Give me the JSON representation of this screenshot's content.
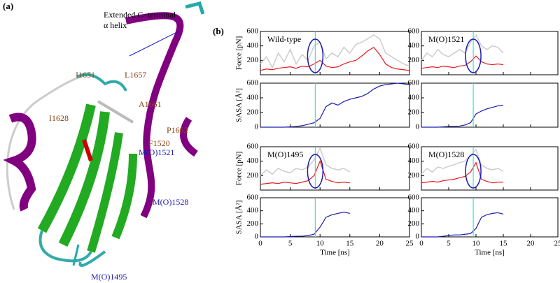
{
  "figure_a": {
    "label": "(a)",
    "annotation": [
      "Extended C−terminal",
      "α helix"
    ],
    "residues": [
      "I1651",
      "L1657",
      "A1661",
      "I1628",
      "P1662",
      "F1520"
    ],
    "oxidized": [
      "M(O)1521",
      "M(O)1528",
      "M(O)1495"
    ]
  },
  "panel_b_label": "(b)",
  "chart_data": [
    {
      "type": "line",
      "title": "Wild-type",
      "ylabel": "Force [pN]",
      "xlim": [
        0,
        25
      ],
      "xticks": [
        0,
        5,
        10,
        15,
        20,
        25
      ],
      "ylim": [
        0,
        600
      ],
      "yticks": [
        200,
        400,
        600
      ],
      "vline": 9.2,
      "vline_color": "#40e0d0",
      "x": [
        0,
        1,
        2,
        3,
        4,
        5,
        6,
        7,
        8,
        9,
        10,
        11,
        12,
        13,
        14,
        15,
        16,
        17,
        18,
        19,
        20,
        21,
        22,
        23,
        24,
        25
      ],
      "series": [
        {
          "color": "#cccccc",
          "values": [
            150,
            250,
            100,
            300,
            180,
            350,
            150,
            280,
            200,
            400,
            450,
            220,
            300,
            250,
            380,
            300,
            420,
            450,
            500,
            550,
            500,
            300,
            250,
            200,
            150,
            120
          ]
        },
        {
          "color": "#e41a1c",
          "values": [
            60,
            80,
            70,
            90,
            100,
            110,
            90,
            120,
            110,
            150,
            200,
            120,
            100,
            110,
            150,
            180,
            200,
            260,
            330,
            380,
            280,
            150,
            100,
            80,
            70,
            60
          ]
        }
      ]
    },
    {
      "type": "line",
      "ylabel": "SASA [Å²]",
      "xlim": [
        0,
        25
      ],
      "xticks": [
        0,
        5,
        10,
        15,
        20,
        25
      ],
      "ylim": [
        0,
        600
      ],
      "yticks": [
        0,
        200,
        400,
        600
      ],
      "vline": 9.2,
      "vline_color": "#40e0d0",
      "x": [
        0,
        1,
        2,
        3,
        4,
        5,
        6,
        7,
        8,
        9,
        10,
        11,
        12,
        13,
        14,
        15,
        16,
        17,
        18,
        19,
        20,
        21,
        22,
        23,
        24,
        25
      ],
      "series": [
        {
          "color": "#1a1ab0",
          "values": [
            0,
            0,
            0,
            0,
            0,
            5,
            10,
            20,
            40,
            60,
            120,
            280,
            330,
            300,
            350,
            380,
            400,
            420,
            460,
            520,
            560,
            580,
            590,
            600,
            590,
            580
          ]
        }
      ]
    },
    {
      "type": "line",
      "title": "M(O)1521",
      "xlim": [
        0,
        25
      ],
      "xticks": [
        0,
        5,
        10,
        15,
        20,
        25
      ],
      "ylim": [
        0,
        600
      ],
      "yticks": [
        200,
        400,
        600
      ],
      "vline": 9.5,
      "vline_color": "#40e0d0",
      "x": [
        0,
        1,
        2,
        3,
        4,
        5,
        6,
        7,
        8,
        9,
        10,
        11,
        12,
        13,
        14,
        15
      ],
      "series": [
        {
          "color": "#cccccc",
          "values": [
            200,
            300,
            250,
            350,
            280,
            250,
            300,
            350,
            300,
            450,
            550,
            400,
            350,
            400,
            380,
            300
          ]
        },
        {
          "color": "#e41a1c",
          "values": [
            90,
            100,
            110,
            100,
            120,
            110,
            100,
            120,
            130,
            180,
            260,
            180,
            150,
            140,
            150,
            140
          ]
        }
      ]
    },
    {
      "type": "line",
      "xlim": [
        0,
        25
      ],
      "xticks": [
        0,
        5,
        10,
        15,
        20,
        25
      ],
      "ylim": [
        0,
        600
      ],
      "yticks": [
        0,
        200,
        400,
        600
      ],
      "vline": 9.5,
      "vline_color": "#40e0d0",
      "x": [
        0,
        1,
        2,
        3,
        4,
        5,
        6,
        7,
        8,
        9,
        10,
        11,
        12,
        13,
        14,
        15
      ],
      "series": [
        {
          "color": "#1a1ab0",
          "values": [
            0,
            0,
            0,
            0,
            5,
            10,
            10,
            15,
            30,
            60,
            180,
            220,
            250,
            270,
            290,
            300
          ]
        }
      ]
    },
    {
      "type": "line",
      "title": "M(O)1495",
      "ylabel": "Force [pN]",
      "xlim": [
        0,
        25
      ],
      "xticks": [
        0,
        5,
        10,
        15,
        20,
        25
      ],
      "ylim": [
        0,
        600
      ],
      "yticks": [
        200,
        400,
        600
      ],
      "vline": 9.2,
      "vline_color": "#40e0d0",
      "x": [
        0,
        1,
        2,
        3,
        4,
        5,
        6,
        7,
        8,
        9,
        10,
        11,
        12,
        13,
        14,
        15
      ],
      "series": [
        {
          "color": "#cccccc",
          "values": [
            200,
            280,
            220,
            300,
            260,
            240,
            300,
            280,
            320,
            420,
            580,
            350,
            300,
            280,
            300,
            250
          ]
        },
        {
          "color": "#e41a1c",
          "values": [
            80,
            90,
            100,
            90,
            110,
            100,
            90,
            110,
            130,
            200,
            400,
            150,
            120,
            100,
            110,
            100
          ]
        }
      ]
    },
    {
      "type": "line",
      "ylabel": "SASA [Å²]",
      "xlabel": "Time [ns]",
      "xlim": [
        0,
        25
      ],
      "xticks": [
        0,
        5,
        10,
        15,
        20,
        25
      ],
      "ylim": [
        0,
        600
      ],
      "yticks": [
        0,
        200,
        400,
        600
      ],
      "vline": 9.2,
      "vline_color": "#40e0d0",
      "x": [
        0,
        1,
        2,
        3,
        4,
        5,
        6,
        7,
        8,
        9,
        10,
        11,
        12,
        13,
        14,
        15
      ],
      "series": [
        {
          "color": "#1a1ab0",
          "values": [
            0,
            0,
            0,
            0,
            0,
            5,
            10,
            10,
            20,
            40,
            150,
            300,
            340,
            360,
            380,
            360
          ]
        }
      ]
    },
    {
      "type": "line",
      "title": "M(O)1528",
      "xlim": [
        0,
        25
      ],
      "xticks": [
        0,
        5,
        10,
        15,
        20,
        25
      ],
      "ylim": [
        0,
        600
      ],
      "yticks": [
        200,
        400,
        600
      ],
      "vline": 9.5,
      "vline_color": "#40e0d0",
      "x": [
        0,
        1,
        2,
        3,
        4,
        5,
        6,
        7,
        8,
        9,
        10,
        11,
        12,
        13,
        14,
        15
      ],
      "series": [
        {
          "color": "#cccccc",
          "values": [
            220,
            300,
            250,
            320,
            300,
            330,
            350,
            380,
            400,
            480,
            560,
            350,
            300,
            280,
            300,
            260
          ]
        },
        {
          "color": "#e41a1c",
          "values": [
            100,
            110,
            120,
            110,
            130,
            140,
            150,
            170,
            190,
            250,
            380,
            150,
            120,
            100,
            110,
            110
          ]
        }
      ]
    },
    {
      "type": "line",
      "xlabel": "Time [ns]",
      "xlim": [
        0,
        25
      ],
      "xticks": [
        0,
        5,
        10,
        15,
        20,
        25
      ],
      "ylim": [
        0,
        600
      ],
      "yticks": [
        0,
        200,
        400,
        600
      ],
      "vline": 9.5,
      "vline_color": "#40e0d0",
      "x": [
        0,
        1,
        2,
        3,
        4,
        5,
        6,
        7,
        8,
        9,
        10,
        11,
        12,
        13,
        14,
        15
      ],
      "series": [
        {
          "color": "#1a1ab0",
          "values": [
            0,
            0,
            0,
            0,
            10,
            20,
            30,
            30,
            40,
            50,
            130,
            300,
            340,
            360,
            370,
            350
          ]
        }
      ]
    }
  ]
}
